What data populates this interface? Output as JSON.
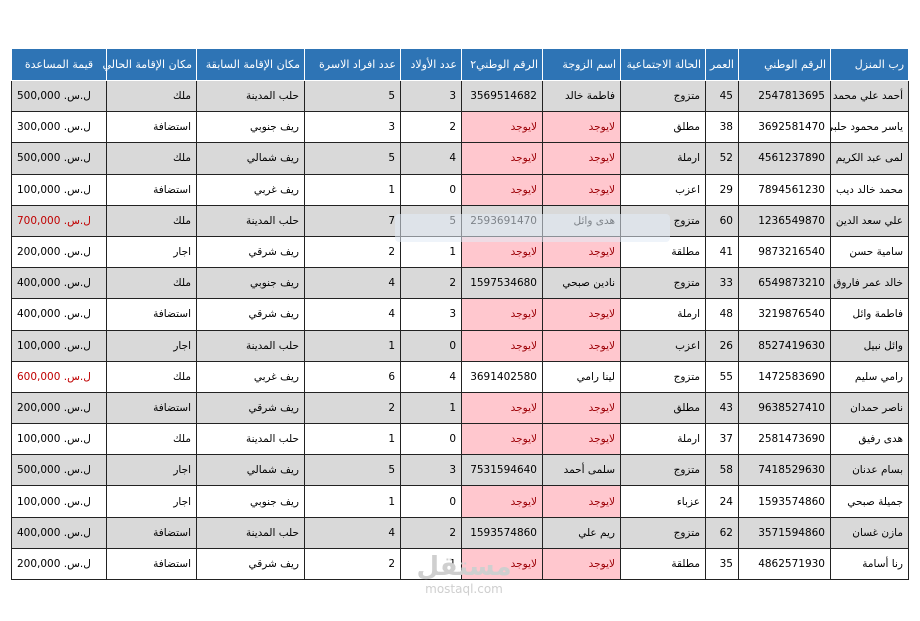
{
  "table": {
    "headers": [
      "رب المنزل",
      "الرقم الوطني",
      "العمر",
      "الحالة الاجتماعية",
      "اسم الزوجة",
      "الرقم الوطني٢",
      "عدد الأولاد",
      "عدد افراد الاسرة",
      "مكان الإقامة السابقة",
      "مكان الإقامة الحالي",
      "قيمة المساعدة"
    ],
    "rows": [
      [
        "أحمد علي محمد",
        "2547813695",
        "45",
        "متزوج",
        "فاطمة خالد",
        "3569514682",
        "3",
        "5",
        "حلب المدينة",
        "ملك",
        "ل.س. 500,000"
      ],
      [
        "ياسر محمود حلبي",
        "3692581470",
        "38",
        "مطلق",
        "لايوجد",
        "لايوجد",
        "2",
        "3",
        "ريف جنوبي",
        "استضافة",
        "ل.س. 300,000"
      ],
      [
        "لمى عبد الكريم",
        "4561237890",
        "52",
        "ارملة",
        "لايوجد",
        "لايوجد",
        "4",
        "5",
        "ريف شمالي",
        "ملك",
        "ل.س. 500,000"
      ],
      [
        "محمد خالد ديب",
        "7894561230",
        "29",
        "اعزب",
        "لايوجد",
        "لايوجد",
        "0",
        "1",
        "ريف غربي",
        "استضافة",
        "ل.س. 100,000"
      ],
      [
        "علي سعد الدين",
        "1236549870",
        "60",
        "متزوج",
        "هدى وائل",
        "2593691470",
        "5",
        "7",
        "حلب المدينة",
        "ملك",
        "ل.س. 700,000"
      ],
      [
        "سامية حسن",
        "9873216540",
        "41",
        "مطلقة",
        "لايوجد",
        "لايوجد",
        "1",
        "2",
        "ريف شرقي",
        "اجار",
        "ل.س. 200,000"
      ],
      [
        "خالد عمر فاروق",
        "6549873210",
        "33",
        "متزوج",
        "نادين صبحي",
        "1597534680",
        "2",
        "4",
        "ريف جنوبي",
        "ملك",
        "ل.س. 400,000"
      ],
      [
        "فاطمة وائل",
        "3219876540",
        "48",
        "ارملة",
        "لايوجد",
        "لايوجد",
        "3",
        "4",
        "ريف شرقي",
        "استضافة",
        "ل.س. 400,000"
      ],
      [
        "وائل نبيل",
        "8527419630",
        "26",
        "اعزب",
        "لايوجد",
        "لايوجد",
        "0",
        "1",
        "حلب المدينة",
        "اجار",
        "ل.س. 100,000"
      ],
      [
        "رامي سليم",
        "1472583690",
        "55",
        "متزوج",
        "لينا رامي",
        "3691402580",
        "4",
        "6",
        "ريف غربي",
        "ملك",
        "ل.س. 600,000"
      ],
      [
        "ناصر حمدان",
        "9638527410",
        "43",
        "مطلق",
        "لايوجد",
        "لايوجد",
        "1",
        "2",
        "ريف شرقي",
        "استضافة",
        "ل.س. 200,000"
      ],
      [
        "هدى رفيق",
        "2581473690",
        "37",
        "ارملة",
        "لايوجد",
        "لايوجد",
        "0",
        "1",
        "حلب المدينة",
        "ملك",
        "ل.س. 100,000"
      ],
      [
        "بسام عدنان",
        "7418529630",
        "58",
        "متزوج",
        "سلمى أحمد",
        "7531594640",
        "3",
        "5",
        "ريف شمالي",
        "اجار",
        "ل.س. 500,000"
      ],
      [
        "جميلة صبحي",
        "1593574860",
        "24",
        "عزباء",
        "لايوجد",
        "لايوجد",
        "0",
        "1",
        "ريف جنوبي",
        "اجار",
        "ل.س. 100,000"
      ],
      [
        "مازن غسان",
        "3571594860",
        "62",
        "متزوج",
        "ريم علي",
        "1593574860",
        "2",
        "4",
        "حلب المدينة",
        "استضافة",
        "ل.س. 400,000"
      ],
      [
        "رنا أسامة",
        "4862571930",
        "35",
        "مطلقة",
        "لايوجد",
        "لايوجد",
        "1",
        "2",
        "ريف شرقي",
        "استضافة",
        "ل.س. 200,000"
      ]
    ],
    "missing_value": "لايوجد",
    "alert_amounts": [
      "ل.س. 700,000",
      "ل.س. 600,000"
    ],
    "colors": {
      "header_bg": "#2e74b5",
      "band_gray": "#d9d9d9",
      "missing_fill": "#ffc7ce",
      "missing_text": "#9c0006",
      "alert_text": "#c00000"
    }
  },
  "watermark": {
    "logo": "مستقل",
    "url": "mostaql.com"
  }
}
